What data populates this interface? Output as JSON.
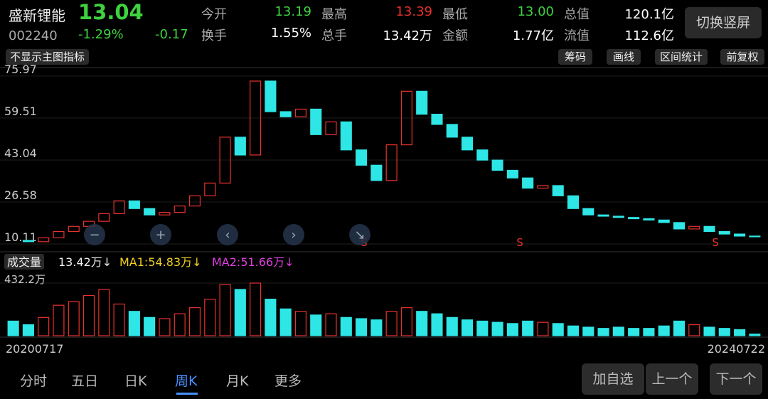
{
  "header": {
    "name": "盛新锂能",
    "price": "13.04",
    "code": "002240",
    "change_pct": "-1.29%",
    "change": "-0.17",
    "stats": [
      {
        "label": "今开",
        "value": "13.19",
        "color": "#3fd13f"
      },
      {
        "label": "最高",
        "value": "13.39",
        "color": "#e8322e"
      },
      {
        "label": "最低",
        "value": "13.00",
        "color": "#3fd13f"
      },
      {
        "label": "总值",
        "value": "120.1亿",
        "color": "#ffffff"
      },
      {
        "label": "换手",
        "value": "1.55%",
        "color": "#ffffff"
      },
      {
        "label": "总手",
        "value": "13.42万",
        "color": "#ffffff"
      },
      {
        "label": "金额",
        "value": "1.77亿",
        "color": "#ffffff"
      },
      {
        "label": "流值",
        "value": "112.6亿",
        "color": "#ffffff"
      }
    ],
    "orientation_button": "切换竖屏"
  },
  "toolbar": {
    "indicator": "不显示主图指标",
    "buttons": [
      "筹码",
      "画线",
      "区间统计",
      "前复权"
    ]
  },
  "chart_data": [
    {
      "type": "candlestick",
      "up_color": "#e8322e",
      "down_color": "#2ee6e6",
      "ylim": [
        7.6,
        79.3
      ],
      "yticks": [
        75.97,
        59.51,
        43.04,
        26.58,
        10.11
      ],
      "values": [
        11.5,
        11,
        12.5,
        15,
        17,
        19,
        22,
        27,
        24,
        21.5,
        22.5,
        25,
        29,
        34,
        52,
        45,
        74,
        62,
        60,
        63,
        53,
        58,
        47,
        41,
        35,
        49,
        70,
        61,
        57,
        52,
        47,
        43,
        39,
        36,
        32,
        33,
        29,
        24,
        21.5,
        21,
        20.5,
        20,
        19.5,
        18.5,
        16,
        17,
        15,
        14,
        13.2,
        13.04
      ],
      "signals": [
        "S",
        "S",
        "S"
      ]
    },
    {
      "type": "bar",
      "title": "成交量",
      "latest": "13.42万↓",
      "ma1": "MA1:54.83万↓",
      "ma2": "MA2:51.66万↓",
      "ylim": [
        0,
        432.2
      ],
      "yticks": [
        {
          "value": 432.2,
          "label": "432.2万"
        }
      ],
      "values": [
        120,
        90,
        150,
        250,
        280,
        330,
        380,
        260,
        200,
        150,
        140,
        180,
        230,
        300,
        420,
        380,
        432.2,
        300,
        220,
        200,
        170,
        180,
        150,
        140,
        130,
        200,
        230,
        200,
        180,
        150,
        130,
        120,
        110,
        100,
        120,
        110,
        100,
        80,
        70,
        60,
        70,
        60,
        60,
        80,
        120,
        90,
        70,
        60,
        50,
        13.42
      ],
      "start_date": "20200717",
      "end_date": "20240722"
    }
  ],
  "tabs": {
    "items": [
      "分时",
      "五日",
      "日K",
      "周K",
      "月K",
      "更多"
    ],
    "active": 3
  },
  "actions": [
    "加自选",
    "上一个",
    "下一个"
  ]
}
